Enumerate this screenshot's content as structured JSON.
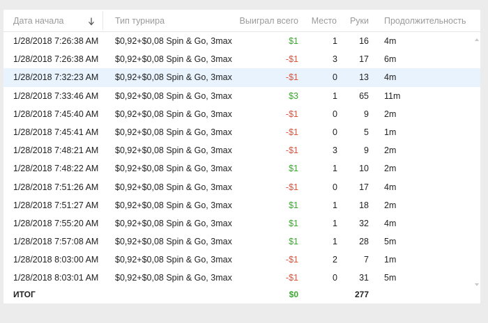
{
  "header": {
    "columns": {
      "date": "Дата начала",
      "type": "Тип турнира",
      "won": "Выиграл всего",
      "place": "Место",
      "hands": "Руки",
      "duration": "Продолжительность"
    }
  },
  "rows": [
    {
      "date": "1/28/2018 7:26:38 AM",
      "type": "$0,92+$0,08 Spin & Go, 3max",
      "won": "$1",
      "won_sign": "pos",
      "place": "1",
      "hands": "16",
      "duration": "4m"
    },
    {
      "date": "1/28/2018 7:26:38 AM",
      "type": "$0,92+$0,08 Spin & Go, 3max",
      "won": "-$1",
      "won_sign": "neg",
      "place": "3",
      "hands": "17",
      "duration": "6m"
    },
    {
      "date": "1/28/2018 7:32:23 AM",
      "type": "$0,92+$0,08 Spin & Go, 3max",
      "won": "-$1",
      "won_sign": "neg",
      "place": "0",
      "hands": "13",
      "duration": "4m",
      "selected": true
    },
    {
      "date": "1/28/2018 7:33:46 AM",
      "type": "$0,92+$0,08 Spin & Go, 3max",
      "won": "$3",
      "won_sign": "pos",
      "place": "1",
      "hands": "65",
      "duration": "11m"
    },
    {
      "date": "1/28/2018 7:45:40 AM",
      "type": "$0,92+$0,08 Spin & Go, 3max",
      "won": "-$1",
      "won_sign": "neg",
      "place": "0",
      "hands": "9",
      "duration": "2m"
    },
    {
      "date": "1/28/2018 7:45:41 AM",
      "type": "$0,92+$0,08 Spin & Go, 3max",
      "won": "-$1",
      "won_sign": "neg",
      "place": "0",
      "hands": "5",
      "duration": "1m"
    },
    {
      "date": "1/28/2018 7:48:21 AM",
      "type": "$0,92+$0,08 Spin & Go, 3max",
      "won": "-$1",
      "won_sign": "neg",
      "place": "3",
      "hands": "9",
      "duration": "2m"
    },
    {
      "date": "1/28/2018 7:48:22 AM",
      "type": "$0,92+$0,08 Spin & Go, 3max",
      "won": "$1",
      "won_sign": "pos",
      "place": "1",
      "hands": "10",
      "duration": "2m"
    },
    {
      "date": "1/28/2018 7:51:26 AM",
      "type": "$0,92+$0,08 Spin & Go, 3max",
      "won": "-$1",
      "won_sign": "neg",
      "place": "0",
      "hands": "17",
      "duration": "4m"
    },
    {
      "date": "1/28/2018 7:51:27 AM",
      "type": "$0,92+$0,08 Spin & Go, 3max",
      "won": "$1",
      "won_sign": "pos",
      "place": "1",
      "hands": "18",
      "duration": "2m"
    },
    {
      "date": "1/28/2018 7:55:20 AM",
      "type": "$0,92+$0,08 Spin & Go, 3max",
      "won": "$1",
      "won_sign": "pos",
      "place": "1",
      "hands": "32",
      "duration": "4m"
    },
    {
      "date": "1/28/2018 7:57:08 AM",
      "type": "$0,92+$0,08 Spin & Go, 3max",
      "won": "$1",
      "won_sign": "pos",
      "place": "1",
      "hands": "28",
      "duration": "5m"
    },
    {
      "date": "1/28/2018 8:03:00 AM",
      "type": "$0,92+$0,08 Spin & Go, 3max",
      "won": "-$1",
      "won_sign": "neg",
      "place": "2",
      "hands": "7",
      "duration": "1m"
    },
    {
      "date": "1/28/2018 8:03:01 AM",
      "type": "$0,92+$0,08 Spin & Go, 3max",
      "won": "-$1",
      "won_sign": "neg",
      "place": "0",
      "hands": "31",
      "duration": "5m"
    }
  ],
  "footer": {
    "label": "ИТОГ",
    "won_total": "$0",
    "hands_total": "277"
  },
  "colors": {
    "positive": "#3aa62e",
    "negative": "#d9533f",
    "selected_row": "#e8f3fd"
  },
  "icons": {
    "sort": "arrow-down-icon",
    "scroll_up": "scroll-up-icon",
    "scroll_down": "scroll-down-icon"
  }
}
